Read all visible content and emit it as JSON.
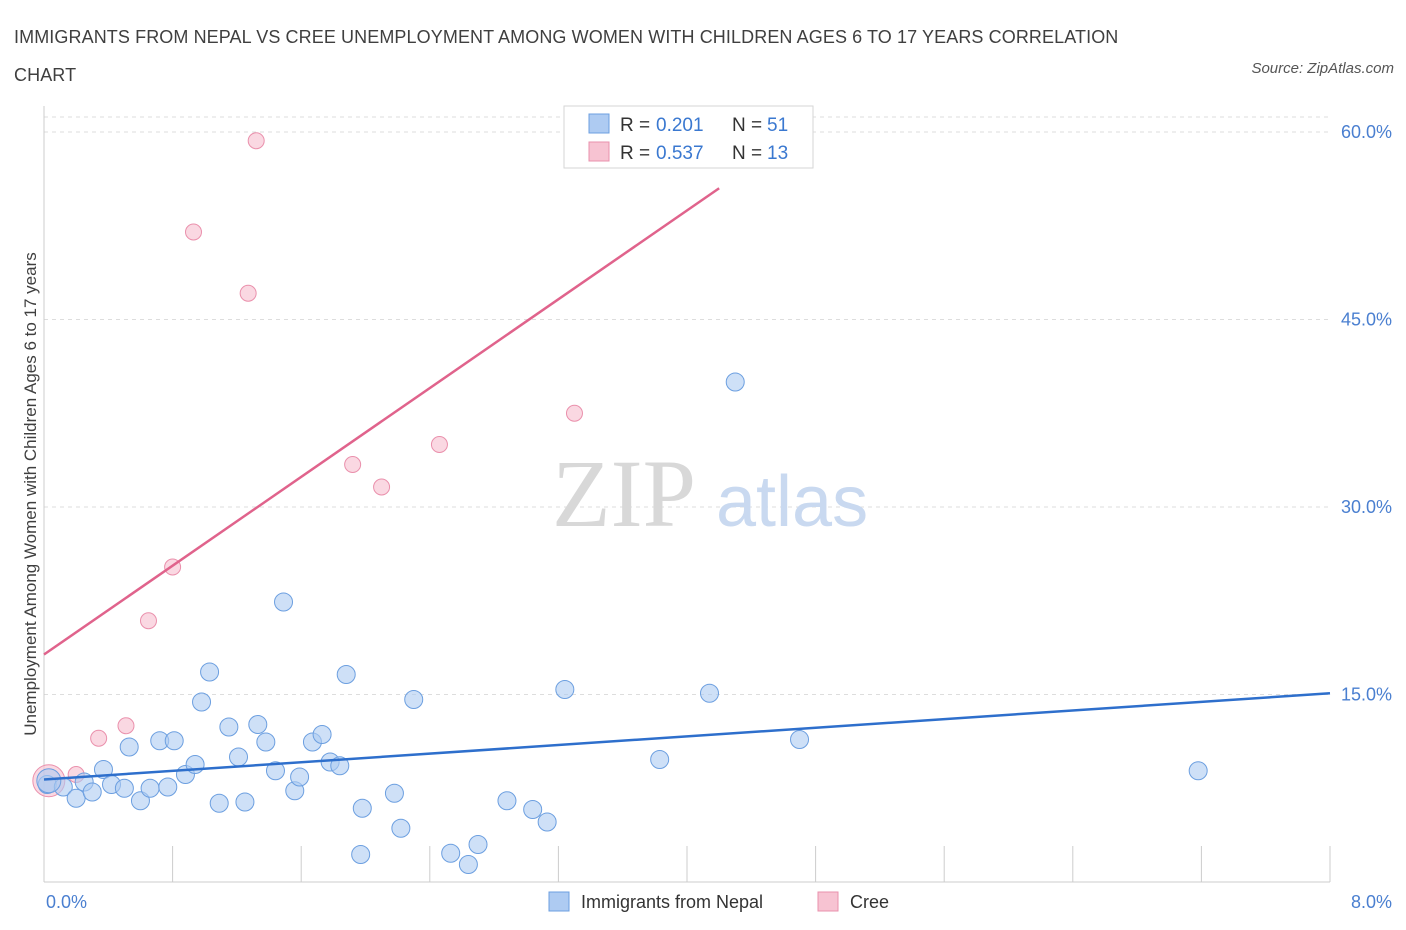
{
  "title": "IMMIGRANTS FROM NEPAL VS CREE UNEMPLOYMENT AMONG WOMEN WITH CHILDREN AGES 6 TO 17 YEARS CORRELATION CHART",
  "source": "Source: ZipAtlas.com",
  "watermark": {
    "zip": "ZIP",
    "atlas": "atlas"
  },
  "colors": {
    "nepal_fill": "#aecbf2",
    "nepal_stroke": "#6c9fe0",
    "nepal_line": "#2e6fcc",
    "cree_fill": "#f7c3d2",
    "cree_stroke": "#ea90ac",
    "cree_line": "#e0638c",
    "grid": "#dddddd",
    "tick_text": "#4a7fd0"
  },
  "legend": {
    "rows": [
      {
        "r_label": "R = ",
        "r_value": "0.201",
        "n_label": "N = ",
        "n_value": "51"
      },
      {
        "r_label": "R = ",
        "r_value": "0.537",
        "n_label": "N = ",
        "n_value": "13"
      }
    ]
  },
  "chart_data": {
    "type": "scatter",
    "title": "IMMIGRANTS FROM NEPAL VS CREE UNEMPLOYMENT AMONG WOMEN WITH CHILDREN AGES 6 TO 17 YEARS CORRELATION CHART",
    "xlabel": "",
    "ylabel": "Unemployment Among Women with Children Ages 6 to 17 years",
    "xlim": [
      0,
      8
    ],
    "ylim": [
      0,
      60
    ],
    "x_tick_labels": [
      "0.0%",
      "8.0%"
    ],
    "y_ticks": [
      15,
      30,
      45,
      60
    ],
    "y_tick_labels": [
      "15.0%",
      "30.0%",
      "45.0%",
      "60.0%"
    ],
    "grid": true,
    "legend_placement": "top-center",
    "series": [
      {
        "name": "Immigrants from Nepal",
        "trend": {
          "x0": 0,
          "y0": 8.2,
          "x1": 8,
          "y1": 15.1
        },
        "points": [
          [
            0.02,
            7.8
          ],
          [
            0.12,
            7.6
          ],
          [
            0.2,
            6.7
          ],
          [
            0.25,
            8.0
          ],
          [
            0.3,
            7.2
          ],
          [
            0.37,
            9.0
          ],
          [
            0.42,
            7.8
          ],
          [
            0.5,
            7.5
          ],
          [
            0.53,
            10.8
          ],
          [
            0.6,
            6.5
          ],
          [
            0.66,
            7.5
          ],
          [
            0.72,
            11.3
          ],
          [
            0.77,
            7.6
          ],
          [
            0.81,
            11.3
          ],
          [
            0.88,
            8.6
          ],
          [
            0.94,
            9.4
          ],
          [
            0.98,
            14.4
          ],
          [
            1.03,
            16.8
          ],
          [
            1.09,
            6.3
          ],
          [
            1.15,
            12.4
          ],
          [
            1.21,
            10.0
          ],
          [
            1.25,
            6.4
          ],
          [
            1.33,
            12.6
          ],
          [
            1.38,
            11.2
          ],
          [
            1.44,
            8.9
          ],
          [
            1.49,
            22.4
          ],
          [
            1.56,
            7.3
          ],
          [
            1.59,
            8.4
          ],
          [
            1.67,
            11.2
          ],
          [
            1.73,
            11.8
          ],
          [
            1.78,
            9.6
          ],
          [
            1.84,
            9.3
          ],
          [
            1.88,
            16.6
          ],
          [
            1.97,
            2.2
          ],
          [
            1.98,
            5.9
          ],
          [
            2.18,
            7.1
          ],
          [
            2.22,
            4.3
          ],
          [
            2.3,
            14.6
          ],
          [
            2.53,
            2.3
          ],
          [
            2.64,
            1.4
          ],
          [
            2.7,
            3.0
          ],
          [
            2.88,
            6.5
          ],
          [
            3.04,
            5.8
          ],
          [
            3.13,
            4.8
          ],
          [
            3.24,
            15.4
          ],
          [
            3.83,
            9.8
          ],
          [
            4.14,
            15.1
          ],
          [
            4.3,
            40.0
          ],
          [
            4.7,
            11.4
          ],
          [
            7.18,
            8.9
          ],
          [
            0.03,
            8.1
          ]
        ]
      },
      {
        "name": "Cree",
        "trend": {
          "x0": 0,
          "y0": 18.2,
          "x1": 4.2,
          "y1": 55.5
        },
        "points": [
          [
            0.03,
            8.1
          ],
          [
            0.2,
            8.6
          ],
          [
            0.34,
            11.5
          ],
          [
            0.51,
            12.5
          ],
          [
            0.65,
            20.9
          ],
          [
            0.8,
            25.2
          ],
          [
            0.93,
            52.0
          ],
          [
            1.27,
            47.1
          ],
          [
            1.32,
            59.3
          ],
          [
            1.92,
            33.4
          ],
          [
            2.1,
            31.6
          ],
          [
            2.46,
            35.0
          ],
          [
            3.3,
            37.5
          ]
        ]
      }
    ]
  }
}
